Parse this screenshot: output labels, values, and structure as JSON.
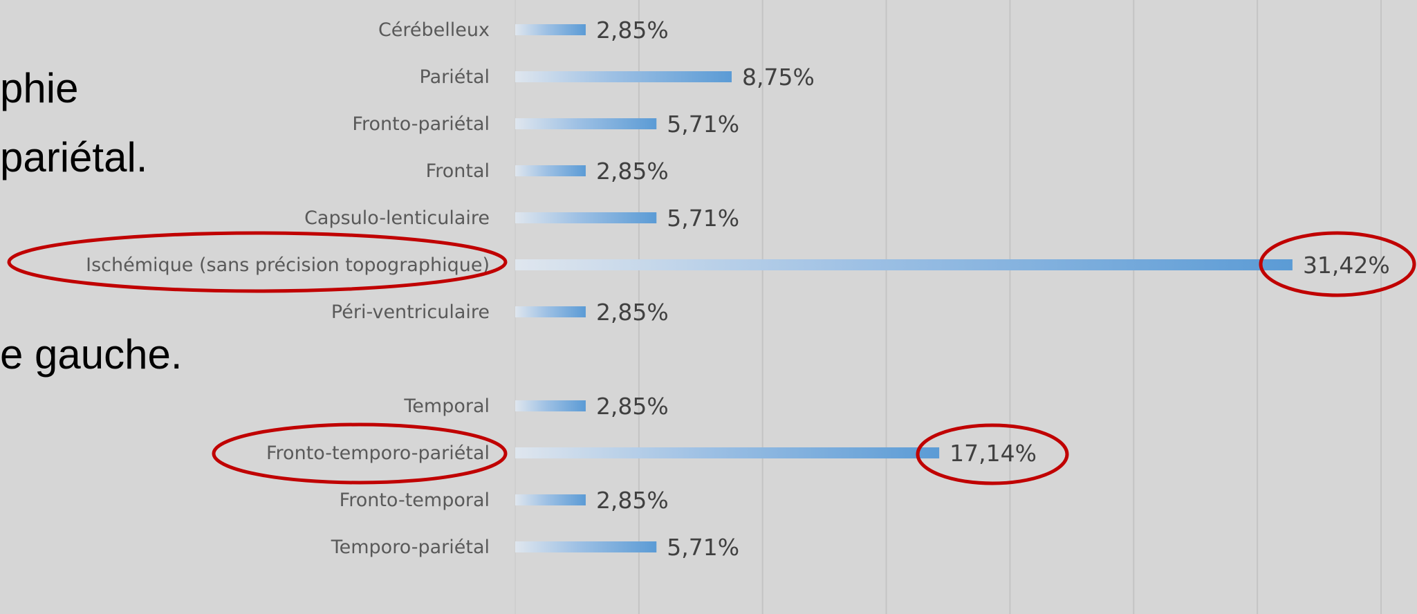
{
  "slide_text": [
    "phie",
    "pariétal.",
    "e gauche."
  ],
  "chart_data": {
    "type": "barh",
    "categories": [
      "Cérébelleux",
      "Pariétal",
      "Fronto-pariétal",
      "Frontal",
      "Capsulo-lenticulaire",
      "Ischémique (sans précision topographique)",
      "Péri-ventriculaire",
      null,
      "Temporal",
      "Fronto-temporo-pariétal",
      "Fronto-temporal",
      "Temporo-pariétal"
    ],
    "values": [
      2.85,
      8.75,
      5.71,
      2.85,
      5.71,
      31.42,
      2.85,
      null,
      2.85,
      17.14,
      2.85,
      5.71
    ],
    "value_labels": [
      "2,85%",
      "8,75%",
      "5,71%",
      "2,85%",
      "5,71%",
      "31,42%",
      "2,85%",
      null,
      "2,85%",
      "17,14%",
      "2,85%",
      "5,71%"
    ],
    "color": "#5b9bd5",
    "xlim": [
      0,
      35
    ],
    "xticks": [
      0,
      5,
      10,
      15,
      20,
      25,
      30,
      35
    ],
    "grid": true
  }
}
